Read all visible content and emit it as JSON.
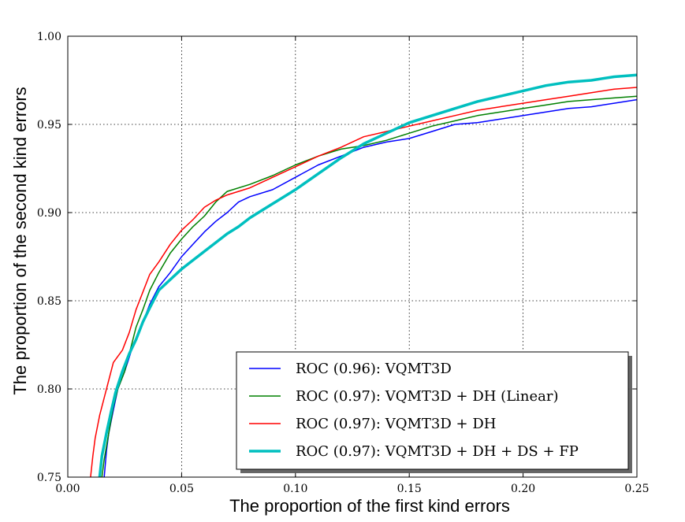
{
  "chart_data": {
    "type": "line",
    "title": "",
    "xlabel": "The proportion of the first kind errors",
    "ylabel": "The proportion of the second kind errors",
    "xlim": [
      0.0,
      0.25
    ],
    "ylim": [
      0.75,
      1.0
    ],
    "xticks": [
      "0.00",
      "0.05",
      "0.10",
      "0.15",
      "0.20",
      "0.25"
    ],
    "yticks": [
      "0.75",
      "0.80",
      "0.85",
      "0.90",
      "0.95",
      "1.00"
    ],
    "grid": true,
    "legend_position": "lower-right",
    "series": [
      {
        "name": "ROC (0.96): VQMT3D",
        "color": "#0000ff",
        "width": "thin",
        "points": [
          [
            0.016,
            0.75
          ],
          [
            0.017,
            0.765
          ],
          [
            0.018,
            0.775
          ],
          [
            0.02,
            0.788
          ],
          [
            0.022,
            0.8
          ],
          [
            0.025,
            0.81
          ],
          [
            0.028,
            0.822
          ],
          [
            0.03,
            0.828
          ],
          [
            0.033,
            0.838
          ],
          [
            0.036,
            0.848
          ],
          [
            0.04,
            0.858
          ],
          [
            0.045,
            0.866
          ],
          [
            0.05,
            0.875
          ],
          [
            0.055,
            0.882
          ],
          [
            0.06,
            0.889
          ],
          [
            0.065,
            0.895
          ],
          [
            0.07,
            0.9
          ],
          [
            0.075,
            0.906
          ],
          [
            0.08,
            0.909
          ],
          [
            0.09,
            0.913
          ],
          [
            0.1,
            0.92
          ],
          [
            0.11,
            0.927
          ],
          [
            0.12,
            0.932
          ],
          [
            0.13,
            0.937
          ],
          [
            0.14,
            0.94
          ],
          [
            0.15,
            0.942
          ],
          [
            0.16,
            0.946
          ],
          [
            0.17,
            0.95
          ],
          [
            0.18,
            0.951
          ],
          [
            0.19,
            0.953
          ],
          [
            0.2,
            0.955
          ],
          [
            0.21,
            0.957
          ],
          [
            0.22,
            0.959
          ],
          [
            0.23,
            0.96
          ],
          [
            0.24,
            0.962
          ],
          [
            0.25,
            0.964
          ]
        ]
      },
      {
        "name": "ROC (0.97): VQMT3D + DH (Linear)",
        "color": "#008000",
        "width": "thin",
        "points": [
          [
            0.015,
            0.75
          ],
          [
            0.016,
            0.76
          ],
          [
            0.018,
            0.775
          ],
          [
            0.02,
            0.79
          ],
          [
            0.022,
            0.8
          ],
          [
            0.025,
            0.81
          ],
          [
            0.028,
            0.825
          ],
          [
            0.03,
            0.835
          ],
          [
            0.033,
            0.845
          ],
          [
            0.036,
            0.856
          ],
          [
            0.04,
            0.866
          ],
          [
            0.045,
            0.877
          ],
          [
            0.05,
            0.885
          ],
          [
            0.055,
            0.892
          ],
          [
            0.06,
            0.898
          ],
          [
            0.065,
            0.906
          ],
          [
            0.07,
            0.912
          ],
          [
            0.08,
            0.916
          ],
          [
            0.09,
            0.921
          ],
          [
            0.1,
            0.927
          ],
          [
            0.11,
            0.932
          ],
          [
            0.12,
            0.936
          ],
          [
            0.13,
            0.938
          ],
          [
            0.14,
            0.941
          ],
          [
            0.15,
            0.945
          ],
          [
            0.16,
            0.949
          ],
          [
            0.17,
            0.952
          ],
          [
            0.18,
            0.955
          ],
          [
            0.19,
            0.957
          ],
          [
            0.2,
            0.959
          ],
          [
            0.21,
            0.961
          ],
          [
            0.22,
            0.963
          ],
          [
            0.23,
            0.964
          ],
          [
            0.24,
            0.965
          ],
          [
            0.25,
            0.966
          ]
        ]
      },
      {
        "name": "ROC (0.97): VQMT3D + DH",
        "color": "#ff0000",
        "width": "thin",
        "points": [
          [
            0.01,
            0.75
          ],
          [
            0.011,
            0.762
          ],
          [
            0.012,
            0.772
          ],
          [
            0.014,
            0.785
          ],
          [
            0.016,
            0.795
          ],
          [
            0.018,
            0.805
          ],
          [
            0.02,
            0.815
          ],
          [
            0.024,
            0.822
          ],
          [
            0.027,
            0.832
          ],
          [
            0.03,
            0.845
          ],
          [
            0.033,
            0.855
          ],
          [
            0.036,
            0.865
          ],
          [
            0.04,
            0.872
          ],
          [
            0.045,
            0.882
          ],
          [
            0.05,
            0.89
          ],
          [
            0.055,
            0.896
          ],
          [
            0.06,
            0.903
          ],
          [
            0.065,
            0.907
          ],
          [
            0.07,
            0.91
          ],
          [
            0.08,
            0.914
          ],
          [
            0.09,
            0.92
          ],
          [
            0.1,
            0.926
          ],
          [
            0.11,
            0.932
          ],
          [
            0.12,
            0.937
          ],
          [
            0.13,
            0.943
          ],
          [
            0.14,
            0.946
          ],
          [
            0.15,
            0.949
          ],
          [
            0.16,
            0.952
          ],
          [
            0.17,
            0.955
          ],
          [
            0.18,
            0.958
          ],
          [
            0.19,
            0.96
          ],
          [
            0.2,
            0.962
          ],
          [
            0.21,
            0.964
          ],
          [
            0.22,
            0.966
          ],
          [
            0.23,
            0.968
          ],
          [
            0.24,
            0.97
          ],
          [
            0.25,
            0.971
          ]
        ]
      },
      {
        "name": "ROC (0.97): VQMT3D + DH + DS + FP",
        "color": "#00bfbf",
        "width": "thick",
        "points": [
          [
            0.014,
            0.75
          ],
          [
            0.015,
            0.762
          ],
          [
            0.017,
            0.775
          ],
          [
            0.019,
            0.787
          ],
          [
            0.021,
            0.798
          ],
          [
            0.024,
            0.81
          ],
          [
            0.027,
            0.82
          ],
          [
            0.03,
            0.828
          ],
          [
            0.033,
            0.838
          ],
          [
            0.036,
            0.846
          ],
          [
            0.04,
            0.856
          ],
          [
            0.045,
            0.862
          ],
          [
            0.05,
            0.868
          ],
          [
            0.055,
            0.873
          ],
          [
            0.06,
            0.878
          ],
          [
            0.065,
            0.883
          ],
          [
            0.07,
            0.888
          ],
          [
            0.075,
            0.892
          ],
          [
            0.08,
            0.897
          ],
          [
            0.09,
            0.905
          ],
          [
            0.1,
            0.913
          ],
          [
            0.11,
            0.922
          ],
          [
            0.12,
            0.931
          ],
          [
            0.13,
            0.939
          ],
          [
            0.14,
            0.945
          ],
          [
            0.15,
            0.951
          ],
          [
            0.16,
            0.955
          ],
          [
            0.17,
            0.959
          ],
          [
            0.18,
            0.963
          ],
          [
            0.19,
            0.966
          ],
          [
            0.2,
            0.969
          ],
          [
            0.21,
            0.972
          ],
          [
            0.22,
            0.974
          ],
          [
            0.23,
            0.975
          ],
          [
            0.24,
            0.977
          ],
          [
            0.25,
            0.978
          ]
        ]
      }
    ]
  }
}
